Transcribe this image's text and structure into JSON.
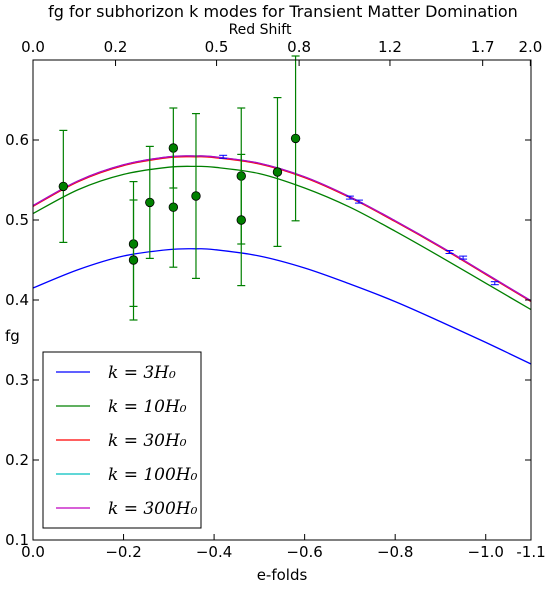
{
  "chart_data": {
    "type": "line",
    "title": "fg for subhorizon k modes for Transient Matter Domination",
    "xlabel": "e-folds",
    "ylabel": "fg",
    "top_xlabel": "Red Shift",
    "xlim": [
      0.0,
      -1.1
    ],
    "ylim": [
      0.1,
      0.7
    ],
    "x_ticks": [
      {
        "value": 0.0,
        "label": "0.0"
      },
      {
        "value": -0.2,
        "label": "−0.2"
      },
      {
        "value": -0.4,
        "label": "−0.4"
      },
      {
        "value": -0.6,
        "label": "−0.6"
      },
      {
        "value": -0.8,
        "label": "−0.8"
      },
      {
        "value": -1.0,
        "label": "−1.0"
      },
      {
        "value": -1.1,
        "label": "-1.1"
      }
    ],
    "y_ticks": [
      {
        "value": 0.1,
        "label": "0.1"
      },
      {
        "value": 0.2,
        "label": "0.2"
      },
      {
        "value": 0.3,
        "label": "0.3"
      },
      {
        "value": 0.4,
        "label": "0.4"
      },
      {
        "value": 0.5,
        "label": "0.5"
      },
      {
        "value": 0.6,
        "label": "0.6"
      }
    ],
    "top_ticks": [
      {
        "value": 0.0,
        "label": "0.0"
      },
      {
        "value": 0.2,
        "label": "0.2"
      },
      {
        "value": 0.5,
        "label": "0.5"
      },
      {
        "value": 0.8,
        "label": "0.8"
      },
      {
        "value": 1.2,
        "label": "1.2"
      },
      {
        "value": 1.7,
        "label": "1.7"
      },
      {
        "value": 2.0,
        "label": "2.0"
      }
    ],
    "grid": false,
    "legend_position": "lower-left",
    "series": [
      {
        "name": "k=3H_0",
        "legend": "k = 3H₀",
        "color": "#0000ff",
        "x": [
          0.0,
          -0.1,
          -0.2,
          -0.3,
          -0.36,
          -0.4,
          -0.5,
          -0.6,
          -0.7,
          -0.8,
          -0.9,
          -1.0,
          -1.1
        ],
        "y": [
          0.415,
          0.438,
          0.455,
          0.463,
          0.464,
          0.463,
          0.455,
          0.44,
          0.42,
          0.398,
          0.373,
          0.347,
          0.32
        ]
      },
      {
        "name": "k=10H_0",
        "legend": "k = 10H₀",
        "color": "#008000",
        "x": [
          0.0,
          -0.1,
          -0.2,
          -0.3,
          -0.36,
          -0.4,
          -0.5,
          -0.6,
          -0.7,
          -0.8,
          -0.9,
          -1.0,
          -1.1
        ],
        "y": [
          0.508,
          0.538,
          0.557,
          0.566,
          0.567,
          0.566,
          0.558,
          0.54,
          0.516,
          0.486,
          0.454,
          0.421,
          0.388
        ]
      },
      {
        "name": "k=30H_0",
        "legend": "k = 30H₀",
        "color": "#ff0000",
        "x": [
          0.0,
          -0.1,
          -0.2,
          -0.3,
          -0.36,
          -0.4,
          -0.5,
          -0.6,
          -0.7,
          -0.8,
          -0.9,
          -1.0,
          -1.1
        ],
        "y": [
          0.517,
          0.548,
          0.568,
          0.578,
          0.579,
          0.578,
          0.57,
          0.553,
          0.528,
          0.498,
          0.466,
          0.432,
          0.398
        ]
      },
      {
        "name": "k=100H_0",
        "legend": "k = 100H₀",
        "color": "#00bfbf",
        "x": [
          0.0,
          -0.1,
          -0.2,
          -0.3,
          -0.36,
          -0.4,
          -0.5,
          -0.6,
          -0.7,
          -0.8,
          -0.9,
          -1.0,
          -1.1
        ],
        "y": [
          0.518,
          0.549,
          0.569,
          0.579,
          0.58,
          0.579,
          0.571,
          0.554,
          0.529,
          0.499,
          0.467,
          0.433,
          0.399
        ]
      },
      {
        "name": "k=300H_0",
        "legend": "k = 300H₀",
        "color": "#bf00bf",
        "x": [
          0.0,
          -0.1,
          -0.2,
          -0.3,
          -0.36,
          -0.4,
          -0.5,
          -0.6,
          -0.7,
          -0.8,
          -0.9,
          -1.0,
          -1.1
        ],
        "y": [
          0.518,
          0.549,
          0.569,
          0.579,
          0.58,
          0.579,
          0.571,
          0.554,
          0.529,
          0.499,
          0.467,
          0.433,
          0.399
        ]
      }
    ],
    "small_error_bars": {
      "color": "#0000ff",
      "x": [
        -0.42,
        -0.7,
        -0.72,
        -0.92,
        -0.95,
        -1.02
      ],
      "y": [
        0.579,
        0.528,
        0.523,
        0.46,
        0.453,
        0.421
      ]
    },
    "data_points": {
      "marker_color": "#008000",
      "x": [
        -0.067,
        -0.222,
        -0.222,
        -0.258,
        -0.31,
        -0.31,
        -0.36,
        -0.46,
        -0.46,
        -0.54,
        -0.58
      ],
      "y": [
        0.542,
        0.47,
        0.45,
        0.522,
        0.59,
        0.516,
        0.53,
        0.555,
        0.5,
        0.56,
        0.602
      ],
      "err": [
        0.07,
        0.078,
        0.075,
        0.07,
        0.05,
        0.075,
        0.103,
        0.085,
        0.082,
        0.093,
        0.103
      ]
    }
  }
}
